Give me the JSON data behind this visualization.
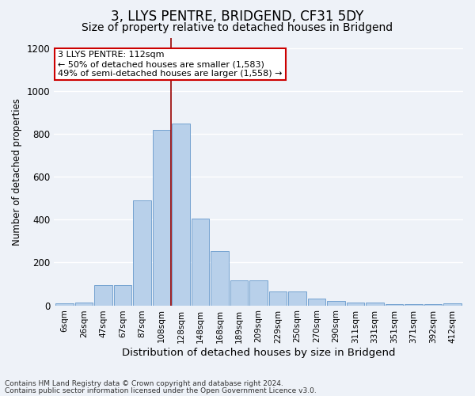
{
  "title": "3, LLYS PENTRE, BRIDGEND, CF31 5DY",
  "subtitle": "Size of property relative to detached houses in Bridgend",
  "xlabel": "Distribution of detached houses by size in Bridgend",
  "ylabel": "Number of detached properties",
  "bar_labels": [
    "6sqm",
    "26sqm",
    "47sqm",
    "67sqm",
    "87sqm",
    "108sqm",
    "128sqm",
    "148sqm",
    "168sqm",
    "189sqm",
    "209sqm",
    "229sqm",
    "250sqm",
    "270sqm",
    "290sqm",
    "311sqm",
    "331sqm",
    "351sqm",
    "371sqm",
    "392sqm",
    "412sqm"
  ],
  "bar_values": [
    10,
    15,
    95,
    95,
    490,
    820,
    850,
    405,
    255,
    115,
    115,
    65,
    65,
    30,
    20,
    15,
    15,
    5,
    5,
    5,
    10
  ],
  "bar_color": "#b8d0ea",
  "bar_edge_color": "#6699cc",
  "vline_index": 5.5,
  "vline_color": "#990000",
  "annotation_text": "3 LLYS PENTRE: 112sqm\n← 50% of detached houses are smaller (1,583)\n49% of semi-detached houses are larger (1,558) →",
  "annotation_box_facecolor": "#ffffff",
  "annotation_box_edgecolor": "#cc0000",
  "ylim": [
    0,
    1250
  ],
  "yticks": [
    0,
    200,
    400,
    600,
    800,
    1000,
    1200
  ],
  "footnote1": "Contains HM Land Registry data © Crown copyright and database right 2024.",
  "footnote2": "Contains public sector information licensed under the Open Government Licence v3.0.",
  "bg_color": "#eef2f8",
  "grid_color": "#ffffff",
  "title_fontsize": 12,
  "subtitle_fontsize": 10,
  "xlabel_fontsize": 9.5,
  "ylabel_fontsize": 8.5,
  "ytick_fontsize": 8.5,
  "xtick_fontsize": 7.5,
  "annot_fontsize": 8,
  "footnote_fontsize": 6.5
}
